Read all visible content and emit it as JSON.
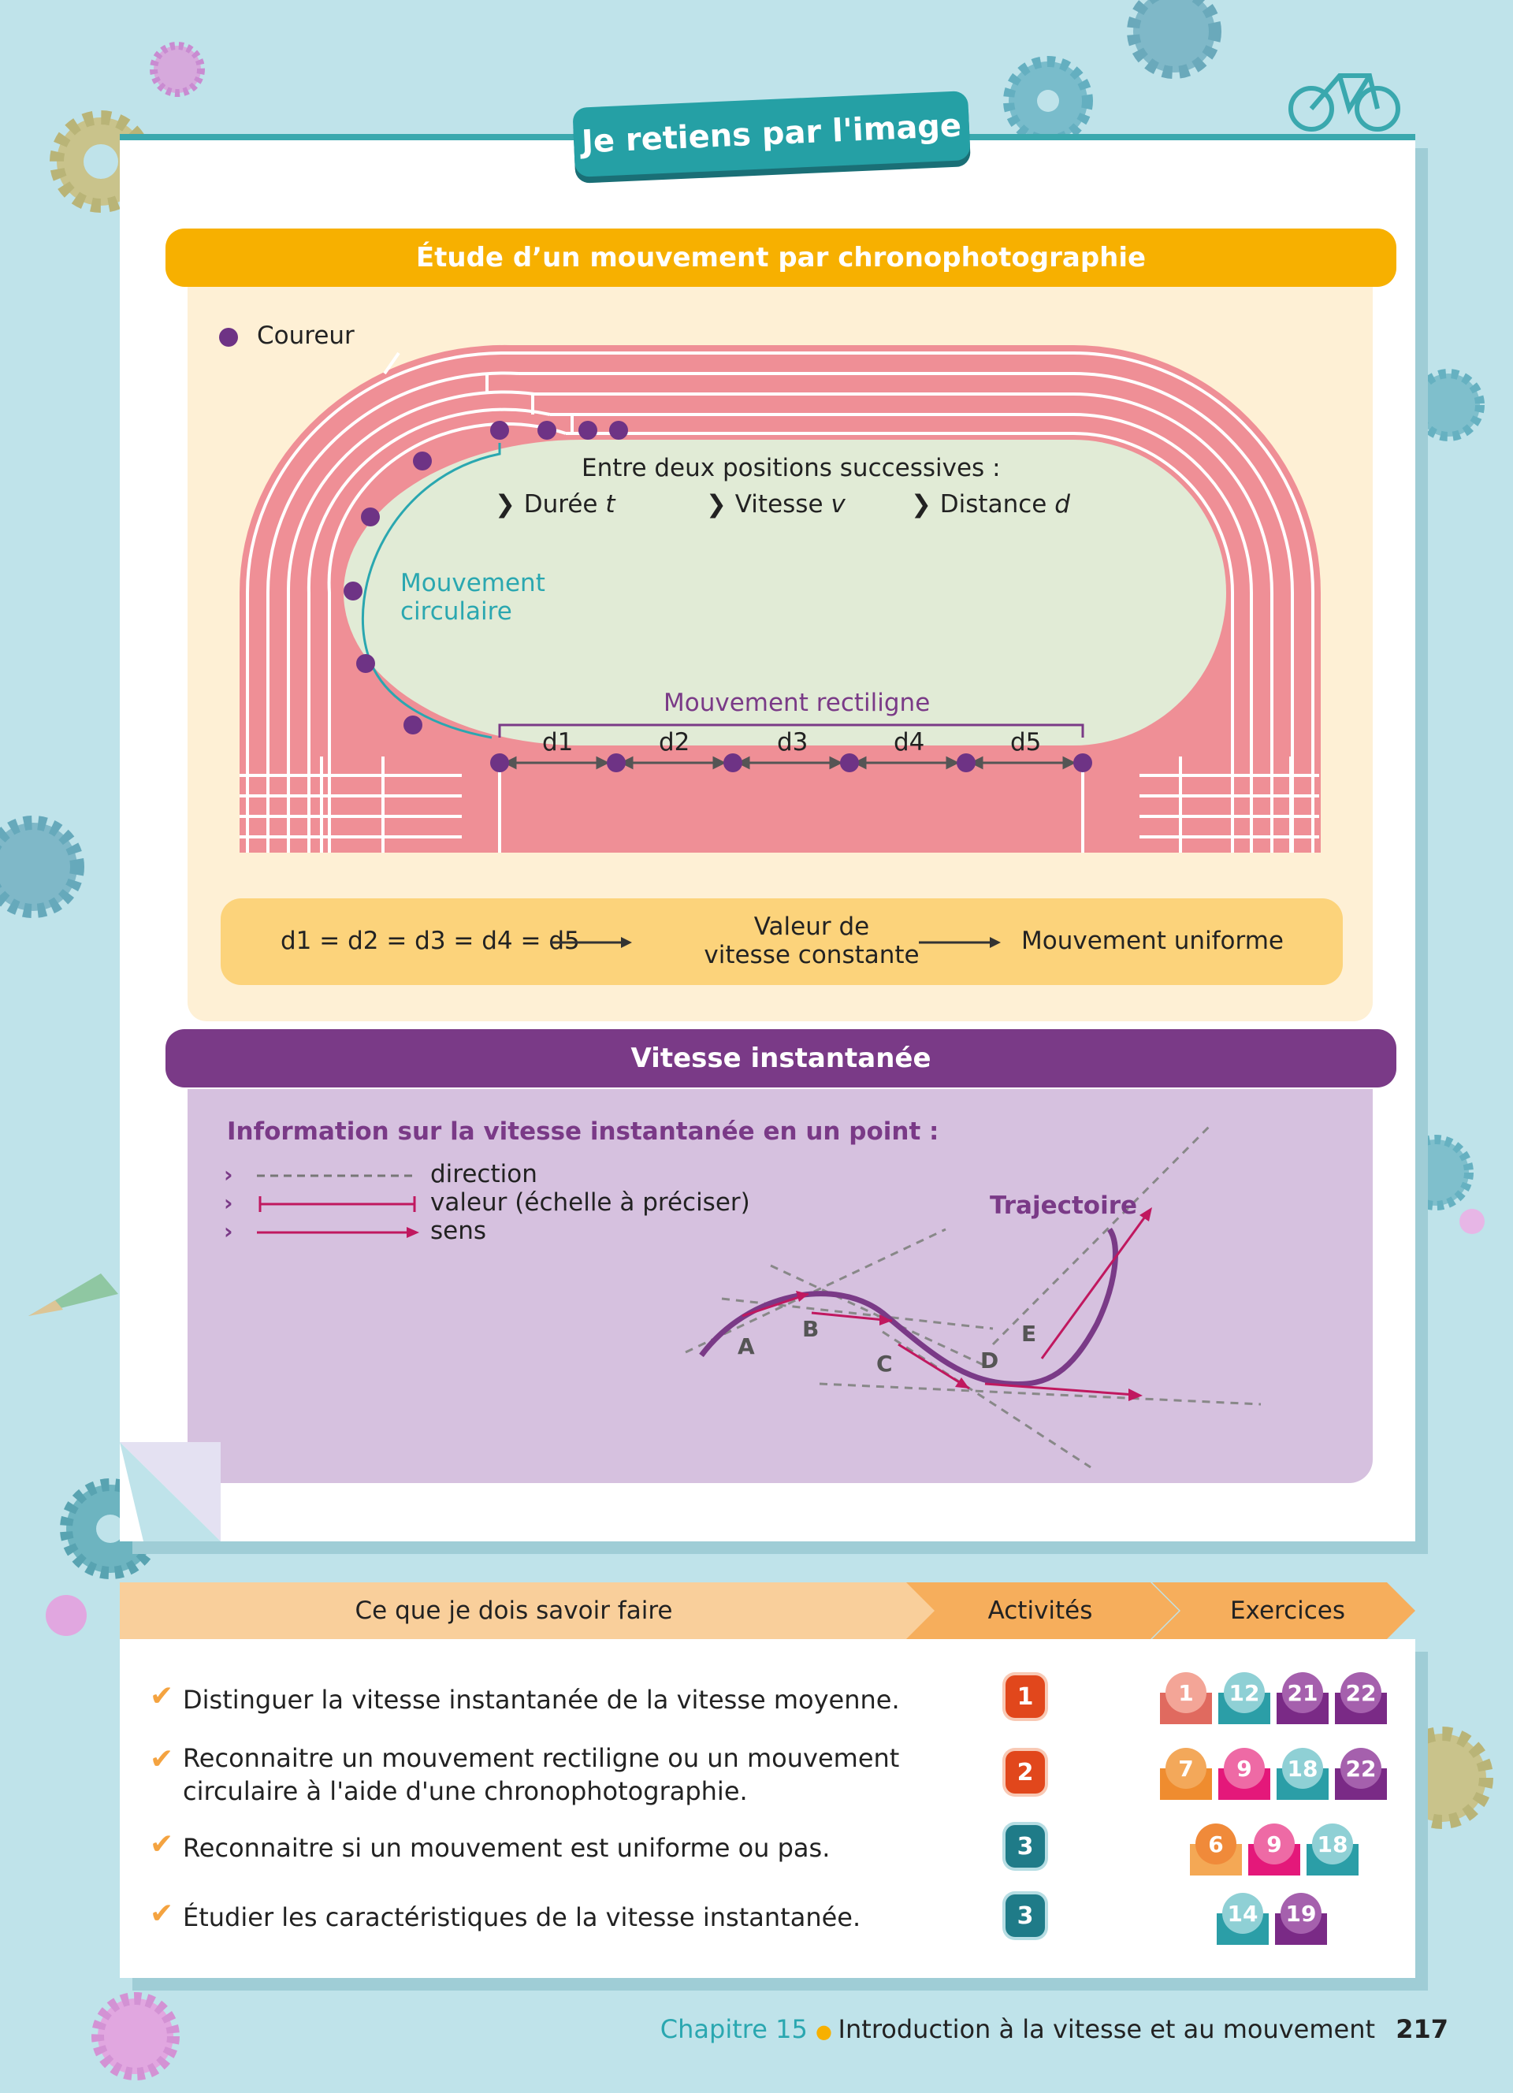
{
  "title": "Je retiens par l'image",
  "section1": {
    "heading": "Étude d’un mouvement par chronophotographie",
    "legend": "Coureur",
    "positions_intro": "Entre deux positions successives :",
    "quantities": [
      "Durée",
      "t",
      "Vitesse",
      "v",
      "Distance",
      "d"
    ],
    "label_circular_1": "Mouvement",
    "label_circular_2": "circulaire",
    "label_rectilinear": "Mouvement rectiligne",
    "distances": [
      "d1",
      "d2",
      "d3",
      "d4",
      "d5"
    ],
    "summary_left": "d1 = d2 = d3 = d4 = d5",
    "summary_mid_1": "Valeur de",
    "summary_mid_2": "vitesse constante",
    "summary_right": "Mouvement uniforme"
  },
  "section2": {
    "heading": "Vitesse instantanée",
    "info_title": "Information sur la vitesse instantanée en un point :",
    "key_direction": "direction",
    "key_value": "valeur (échelle à préciser)",
    "key_sense": "sens",
    "trajectory_label": "Trajectoire",
    "points": [
      "A",
      "B",
      "C",
      "D",
      "E"
    ]
  },
  "skills": {
    "header_skills": "Ce que je dois savoir faire",
    "header_activities": "Activités",
    "header_exercises": "Exercices",
    "rows": [
      {
        "text_1": "Distinguer la vitesse instantanée de la vitesse moyenne.",
        "text_2": "",
        "activity": "1",
        "exercises": [
          "1",
          "12",
          "21",
          "22"
        ]
      },
      {
        "text_1": "Reconnaitre un mouvement rectiligne ou un mouvement",
        "text_2": "circulaire à l'aide d'une chronophotographie.",
        "activity": "2",
        "exercises": [
          "7",
          "9",
          "18",
          "22"
        ]
      },
      {
        "text_1": "Reconnaitre si un mouvement est uniforme ou pas.",
        "text_2": "",
        "activity": "3",
        "exercises": [
          "6",
          "9",
          "18"
        ]
      },
      {
        "text_1": "Étudier les caractéristiques de la vitesse instantanée.",
        "text_2": "",
        "activity": "3",
        "exercises": [
          "14",
          "19"
        ]
      }
    ]
  },
  "footer": {
    "chapter": "Chapitre 15",
    "title": "Introduction à la vitesse et au mouvement",
    "page": "217"
  },
  "colors": {
    "orange_bar": "#f7b000",
    "purple_bar": "#7a3a87",
    "track": "#ef8f96",
    "field": "#e1ebd6",
    "teal": "#25a0a5",
    "runner": "#6e3385"
  }
}
